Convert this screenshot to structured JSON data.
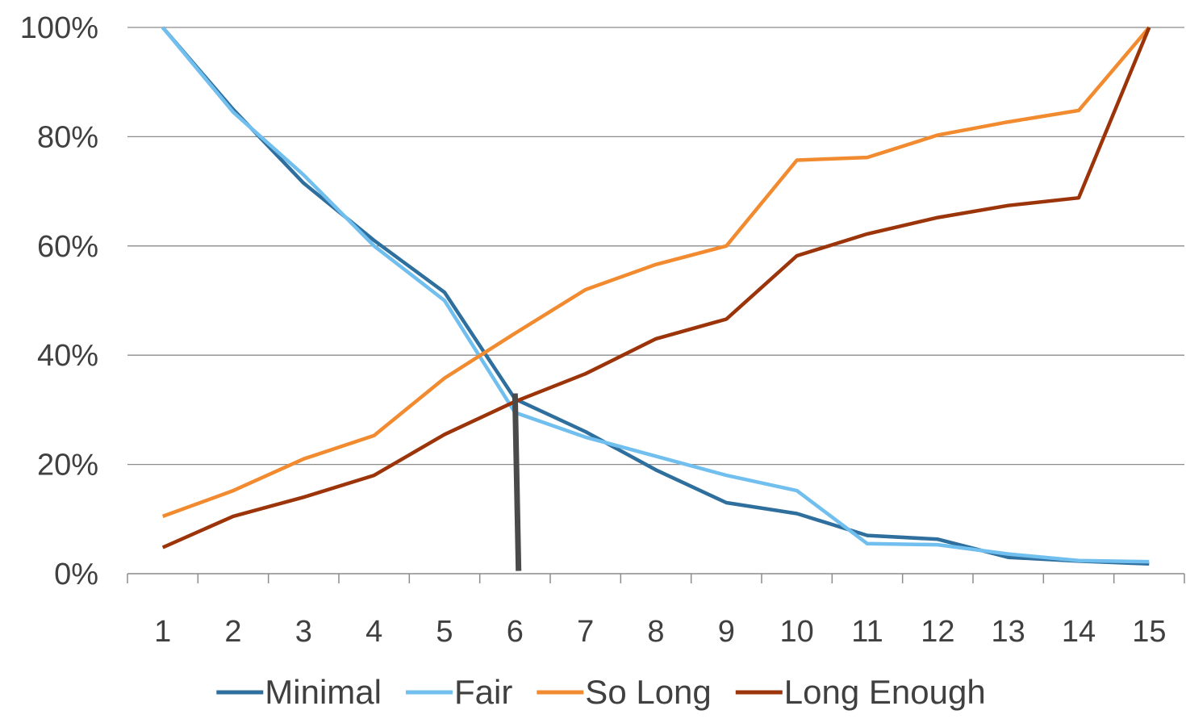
{
  "chart_data": {
    "type": "line",
    "title": "",
    "xlabel": "",
    "ylabel": "",
    "x": [
      1,
      2,
      3,
      4,
      5,
      6,
      7,
      8,
      9,
      10,
      11,
      12,
      13,
      14,
      15
    ],
    "x_tick_labels": [
      "1",
      "2",
      "3",
      "4",
      "5",
      "6",
      "7",
      "8",
      "9",
      "10",
      "11",
      "12",
      "13",
      "14",
      "15"
    ],
    "ylim": [
      0,
      1
    ],
    "y_ticks": [
      0,
      0.2,
      0.4,
      0.6,
      0.8,
      1.0
    ],
    "y_tick_labels": [
      "0%",
      "20%",
      "40%",
      "60%",
      "80%",
      "100%"
    ],
    "grid": "horizontal",
    "legend_position": "bottom",
    "series": [
      {
        "name": "Minimal",
        "color": "#2e6f9e",
        "values": [
          1.0,
          0.85,
          0.715,
          0.61,
          0.515,
          0.32,
          0.26,
          0.19,
          0.13,
          0.11,
          0.07,
          0.063,
          0.03,
          0.023,
          0.018
        ]
      },
      {
        "name": "Fair",
        "color": "#71bfee",
        "values": [
          1.0,
          0.845,
          0.73,
          0.6,
          0.5,
          0.295,
          0.25,
          0.215,
          0.18,
          0.152,
          0.055,
          0.053,
          0.036,
          0.024,
          0.022
        ]
      },
      {
        "name": "So Long",
        "color": "#f28b30",
        "values": [
          0.105,
          0.152,
          0.21,
          0.253,
          0.358,
          0.44,
          0.52,
          0.566,
          0.6,
          0.757,
          0.762,
          0.803,
          0.827,
          0.848,
          1.0
        ]
      },
      {
        "name": "Long Enough",
        "color": "#9c3409",
        "values": [
          0.048,
          0.105,
          0.14,
          0.18,
          0.255,
          0.315,
          0.366,
          0.43,
          0.466,
          0.582,
          0.622,
          0.652,
          0.674,
          0.688,
          1.0
        ]
      }
    ],
    "annotations": [
      {
        "type": "vertical-marker",
        "color": "#4a4a4a",
        "x_start": 6.0,
        "x_end": 6.05,
        "y_start": 0.33,
        "y_end": 0.005
      }
    ]
  }
}
